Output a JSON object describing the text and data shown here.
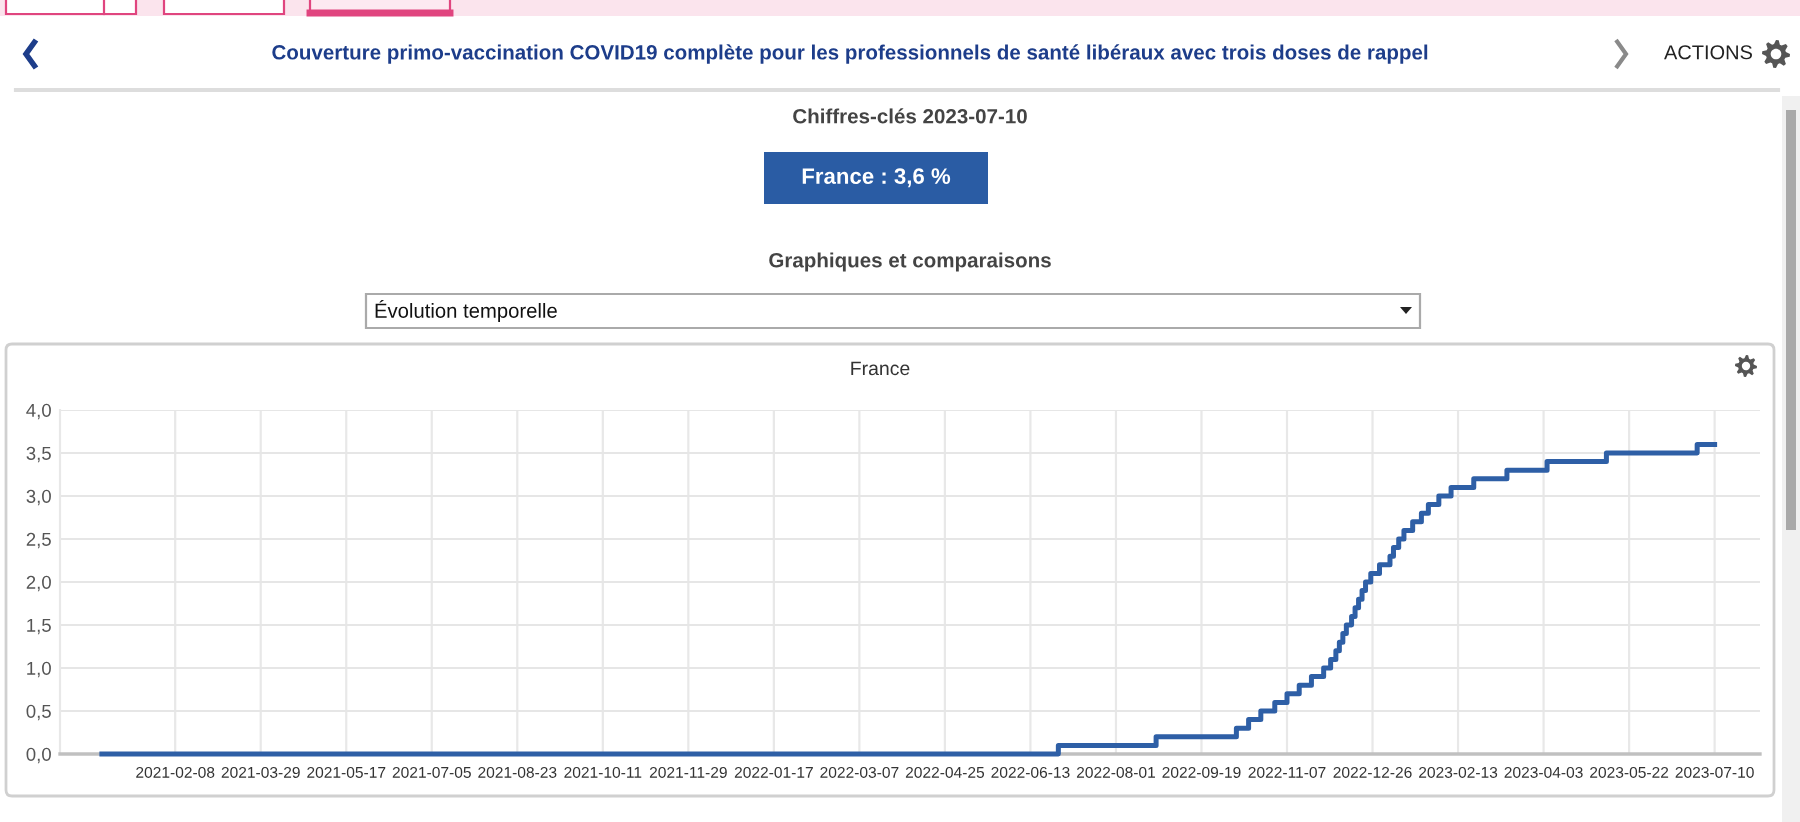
{
  "chart_data": {
    "type": "step",
    "title": "Couverture primo-vaccination COVID19 complète pour les professionnels de santé libéraux avec trois doses de rappel",
    "subtitle": "France",
    "annotations": [
      "Chiffres-clés 2023-07-10",
      "France : 3,6 %",
      "Graphiques et comparaisons",
      "Évolution temporelle",
      "ACTIONS"
    ],
    "x": [
      "2020-12-28",
      "2022-06-29",
      "2022-08-24",
      "2022-10-09",
      "2022-10-16",
      "2022-10-23",
      "2022-10-31",
      "2022-11-07",
      "2022-11-14",
      "2022-11-21",
      "2022-11-28",
      "2022-12-02",
      "2022-12-05",
      "2022-12-07",
      "2022-12-09",
      "2022-12-11",
      "2022-12-14",
      "2022-12-16",
      "2022-12-18",
      "2022-12-20",
      "2022-12-22",
      "2022-12-25",
      "2022-12-30",
      "2023-01-05",
      "2023-01-07",
      "2023-01-10",
      "2023-01-13",
      "2023-01-18",
      "2023-01-23",
      "2023-01-27",
      "2023-02-02",
      "2023-02-09",
      "2023-02-22",
      "2023-03-13",
      "2023-04-05",
      "2023-05-09",
      "2023-06-30",
      "2023-07-10"
    ],
    "series": [
      {
        "color": "#2e5fa6",
        "values": [
          0.0,
          0.1,
          0.2,
          0.3,
          0.4,
          0.5,
          0.6,
          0.7,
          0.8,
          0.9,
          1.0,
          1.1,
          1.2,
          1.3,
          1.4,
          1.5,
          1.6,
          1.7,
          1.8,
          1.9,
          2.0,
          2.1,
          2.2,
          2.3,
          2.4,
          2.5,
          2.6,
          2.7,
          2.8,
          2.9,
          3.0,
          3.1,
          3.2,
          3.3,
          3.4,
          3.5,
          3.6,
          3.6
        ]
      }
    ],
    "xlim": [
      "2020-12-04",
      "2023-08-05"
    ],
    "xticks": [
      "2021-02-08",
      "2021-03-29",
      "2021-05-17",
      "2021-07-05",
      "2021-08-23",
      "2021-10-11",
      "2021-11-29",
      "2022-01-17",
      "2022-03-07",
      "2022-04-25",
      "2022-06-13",
      "2022-08-01",
      "2022-09-19",
      "2022-11-07",
      "2022-12-26",
      "2023-02-13",
      "2023-04-03",
      "2023-05-22",
      "2023-07-10"
    ],
    "ylim": [
      0,
      4
    ],
    "yticks": [
      {
        "value": 0,
        "label": "0,0"
      },
      {
        "value": 0.5,
        "label": "0,5"
      },
      {
        "value": 1,
        "label": "1,0"
      },
      {
        "value": 1.5,
        "label": "1,5"
      },
      {
        "value": 2,
        "label": "2,0"
      },
      {
        "value": 2.5,
        "label": "2,5"
      },
      {
        "value": 3,
        "label": "3,0"
      },
      {
        "value": 3.5,
        "label": "3,5"
      },
      {
        "value": 4,
        "label": "4,0"
      }
    ],
    "grid": true
  }
}
